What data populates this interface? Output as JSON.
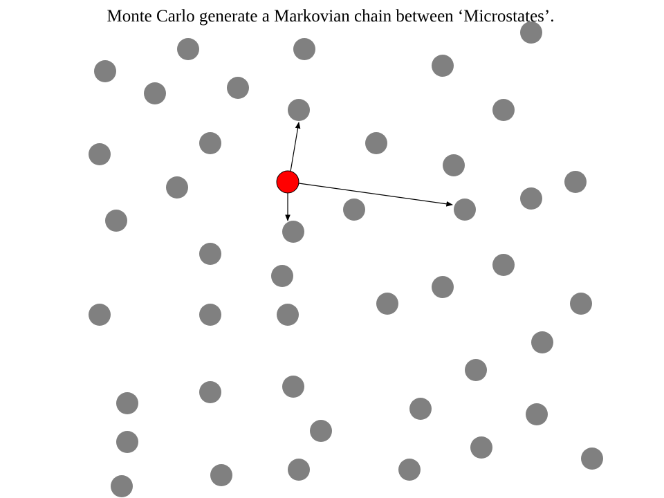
{
  "title": "Monte Carlo generate a Markovian chain between ‘Microstates’."
}
